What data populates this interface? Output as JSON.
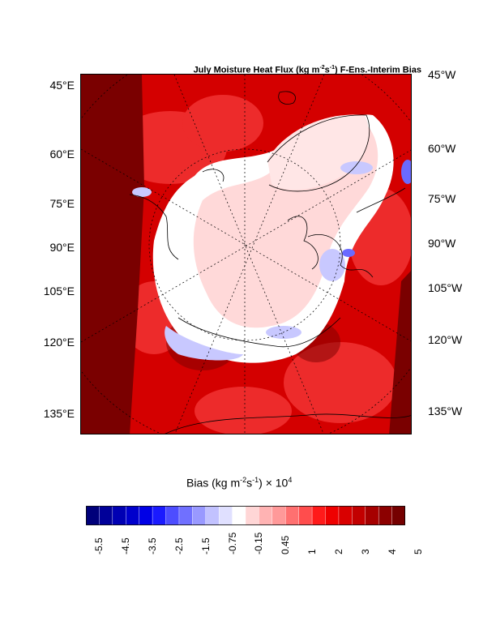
{
  "title": {
    "pre": "July Moisture Heat Flux (kg m",
    "exp1": "-2",
    "mid": "s",
    "exp2": "-1",
    "post": ") F-Ens.-Interim Bias"
  },
  "left_labels": [
    "45°E",
    "60°E",
    "75°E",
    "90°E",
    "105°E",
    "120°E",
    "135°E"
  ],
  "right_labels": [
    "45°W",
    "60°W",
    "75°W",
    "90°W",
    "105°W",
    "120°W",
    "135°W"
  ],
  "colorbar": {
    "title_pre": "Bias (kg m",
    "title_exp1": "-2",
    "title_mid": "s",
    "title_exp2": "-1",
    "title_post": ") × 10",
    "title_exp3": "4",
    "tick_labels": [
      "-5.5",
      "-4.5",
      "-3.5",
      "-2.5",
      "-1.5",
      "-0.75",
      "-0.15",
      "0.45",
      "1",
      "2",
      "3",
      "4",
      "5"
    ],
    "colors": [
      "#00007a",
      "#000099",
      "#0000b3",
      "#0000cc",
      "#0000e6",
      "#1a1aff",
      "#4d4dff",
      "#7070ff",
      "#9999ff",
      "#c2c2ff",
      "#e0e0ff",
      "#ffffff",
      "#ffd6d6",
      "#ffb3b3",
      "#ff9999",
      "#ff7070",
      "#ff4d4d",
      "#ff1a1a",
      "#ef0000",
      "#d90000",
      "#c20000",
      "#a60000",
      "#8c0000",
      "#750000"
    ]
  },
  "map_colors": {
    "dark_red": "#7a0000",
    "red": "#d40000",
    "mid_red": "#f03030",
    "light_red": "#ff9a9a",
    "pale_pink": "#ffd9d9",
    "white": "#ffffff",
    "light_blue": "#c8c8ff",
    "blue": "#6a6aff"
  }
}
